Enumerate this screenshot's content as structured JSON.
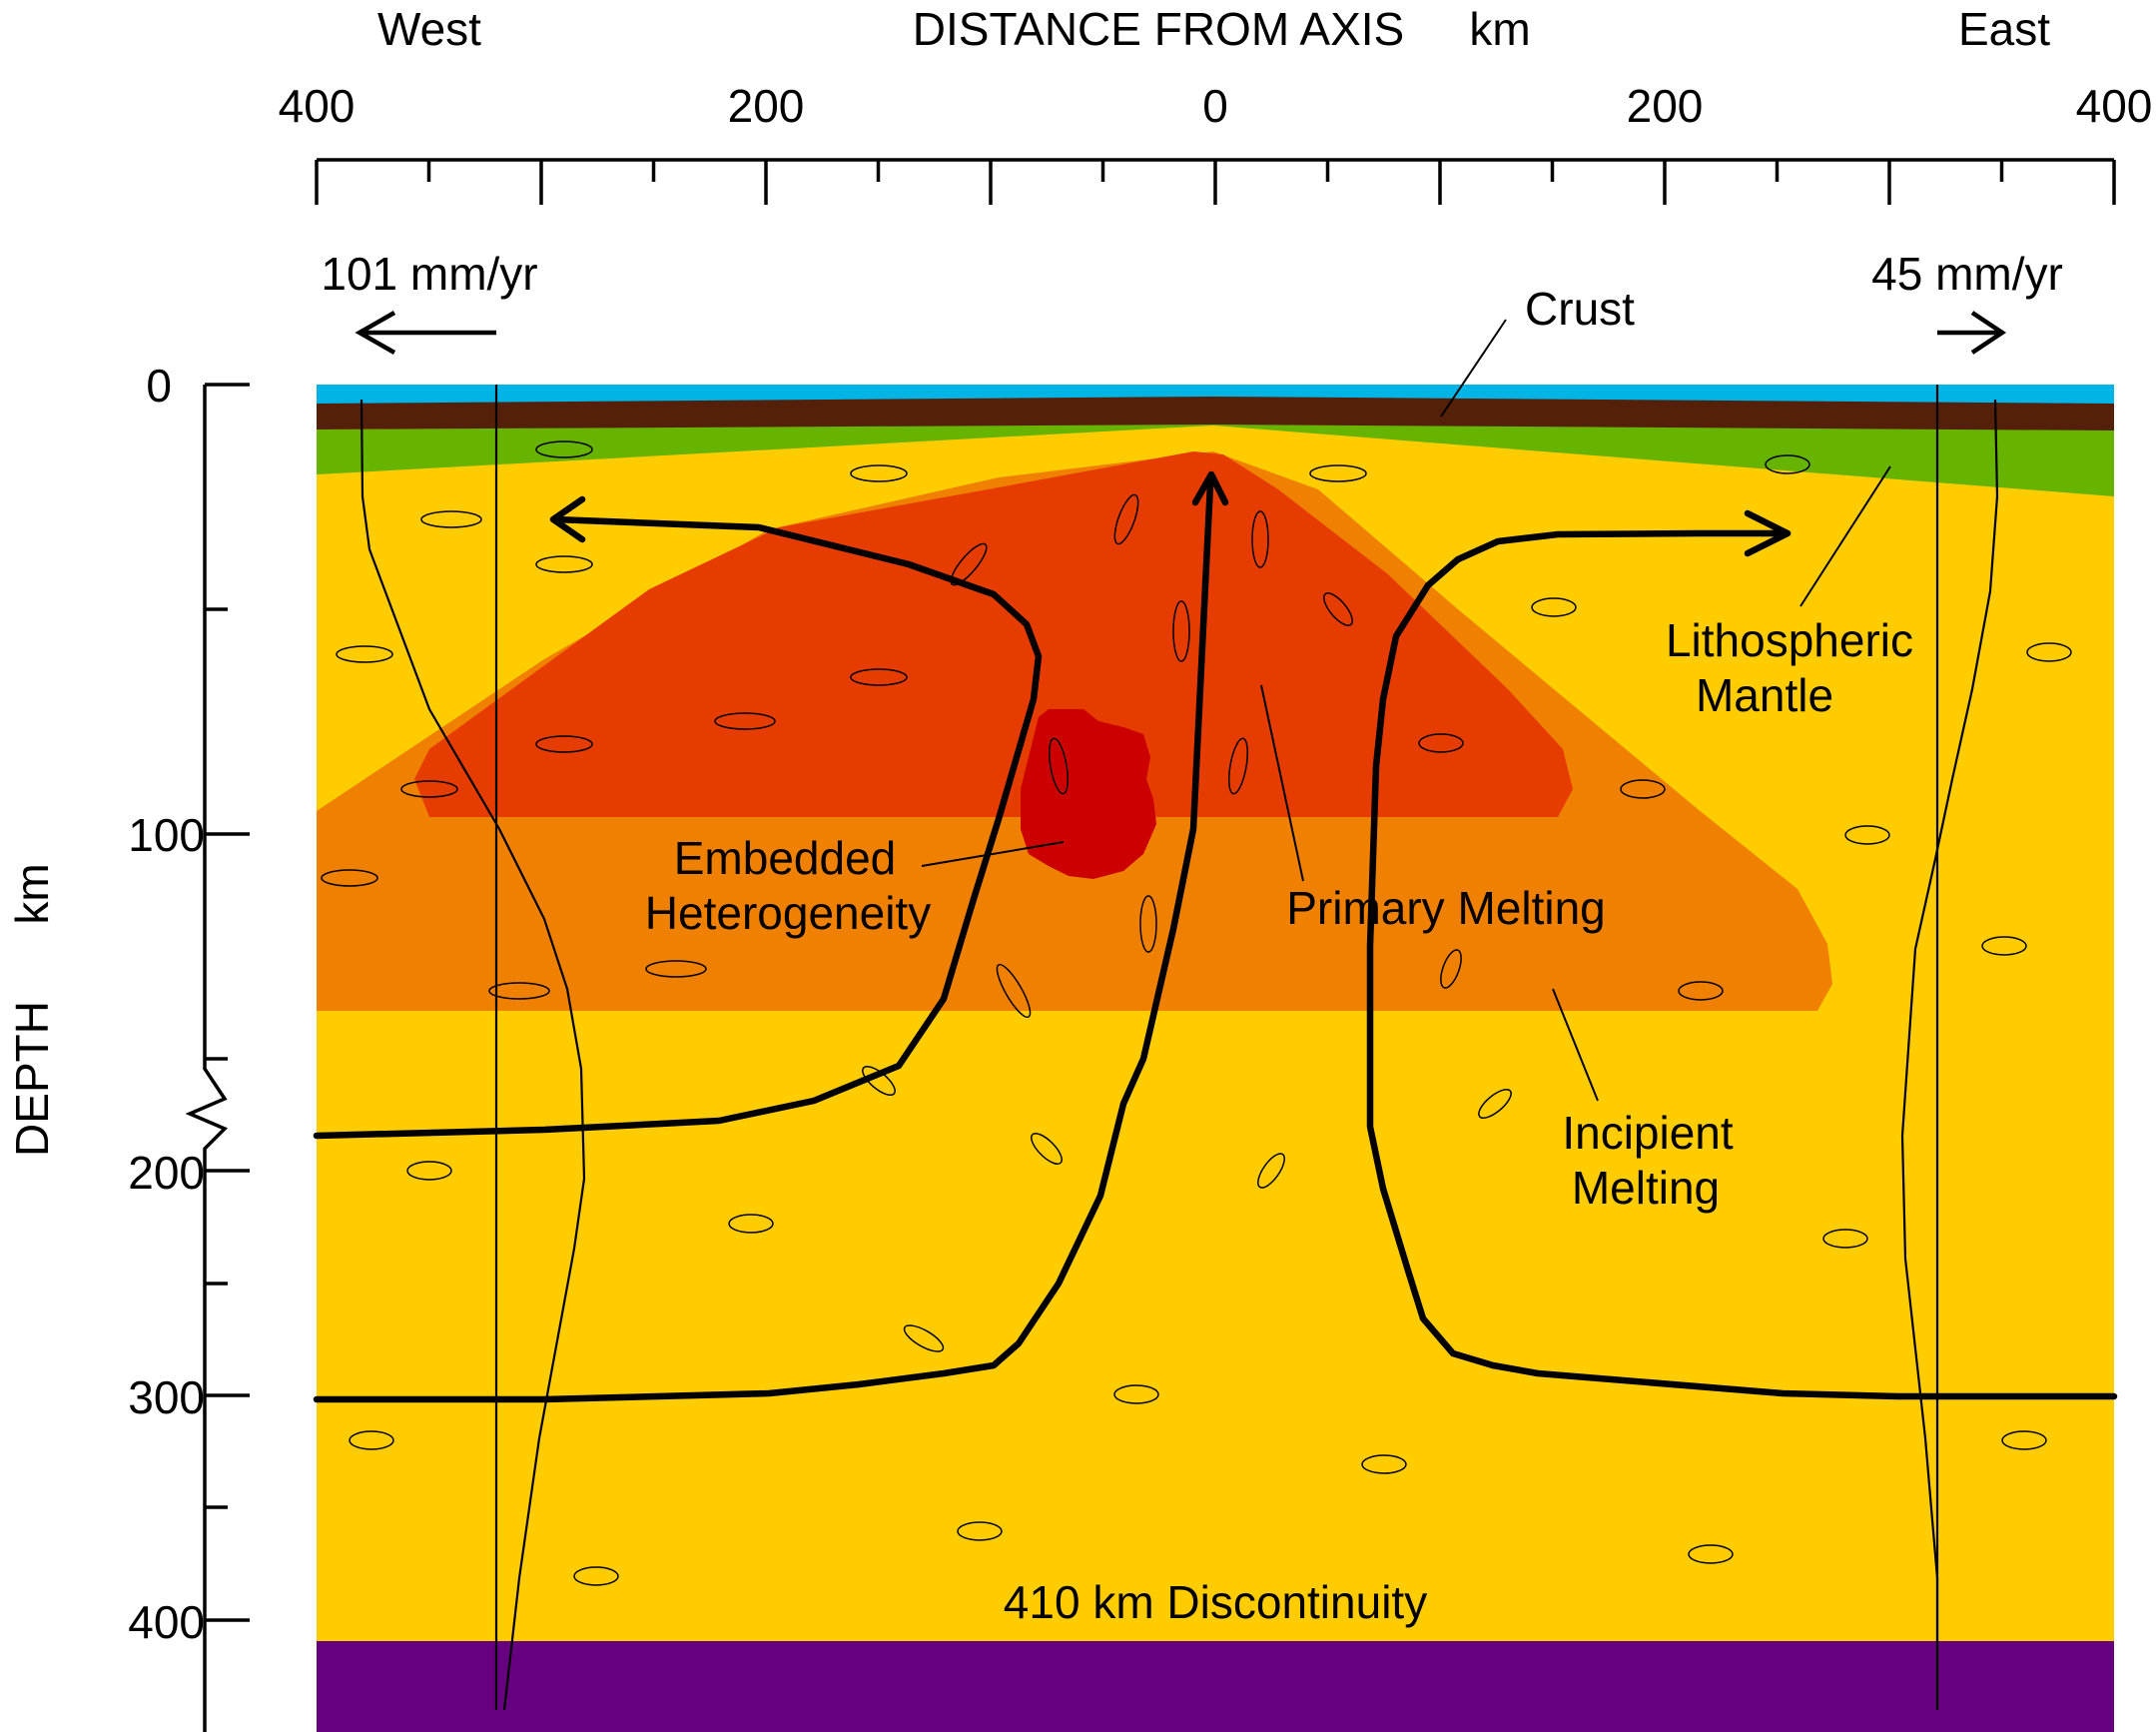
{
  "header": {
    "west": "West",
    "east": "East",
    "axis_title": "DISTANCE FROM AXIS",
    "axis_unit": "km"
  },
  "x_ticks": [
    "400",
    "200",
    "0",
    "200",
    "400"
  ],
  "y_axis": {
    "title": "DEPTH",
    "unit": "km",
    "ticks": [
      "0",
      "100",
      "200",
      "300",
      "400"
    ]
  },
  "plate_rates": {
    "west": "101 mm/yr",
    "east": "45 mm/yr"
  },
  "labels": {
    "crust": "Crust",
    "lithospheric_1": "Lithospheric",
    "lithospheric_2": "Mantle",
    "embedded_1": "Embedded",
    "embedded_2": "Heterogeneity",
    "primary": "Primary Melting",
    "incipient_1": "Incipient",
    "incipient_2": "Melting",
    "discontinuity": "410  km  Discontinuity"
  },
  "colors": {
    "ocean": "#00B4E6",
    "crust": "#55200A",
    "lithospheric_mantle": "#66B300",
    "asthenosphere": "#FFCC00",
    "incipient_melting": "#F08000",
    "primary_melting": "#E63C00",
    "heterogeneity": "#CC0000",
    "discontinuity_layer": "#660080"
  }
}
